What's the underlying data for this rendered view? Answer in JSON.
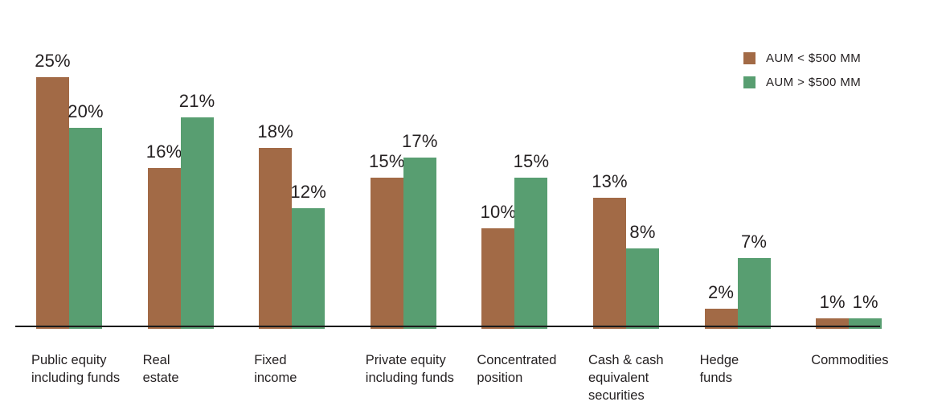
{
  "chart_data": {
    "type": "bar",
    "title": "",
    "categories": [
      "Public equity including funds",
      "Real estate",
      "Fixed income",
      "Private equity including funds",
      "Concentrated position",
      "Cash & cash equivalent securities",
      "Hedge funds",
      "Commodities"
    ],
    "category_lines": [
      [
        "Public equity",
        "including funds"
      ],
      [
        "Real",
        "estate"
      ],
      [
        "Fixed",
        "income"
      ],
      [
        "Private equity",
        "including funds"
      ],
      [
        "Concentrated",
        "position"
      ],
      [
        "Cash & cash",
        "equivalent",
        "securities"
      ],
      [
        "Hedge",
        "funds"
      ],
      [
        "Commodities"
      ]
    ],
    "series": [
      {
        "name": "AUM < $500 MM",
        "color": "#a26a46",
        "values": [
          25,
          16,
          18,
          15,
          10,
          13,
          2,
          1
        ]
      },
      {
        "name": "AUM > $500 MM",
        "color": "#589e71",
        "values": [
          20,
          21,
          12,
          17,
          15,
          8,
          7,
          1
        ]
      }
    ],
    "value_suffix": "%",
    "ylim": [
      0,
      25
    ],
    "grid": false,
    "legend_position": "top-right",
    "axis_color": "#1a1a1a",
    "text_color": "#231f20",
    "background_color": "#ffffff"
  }
}
